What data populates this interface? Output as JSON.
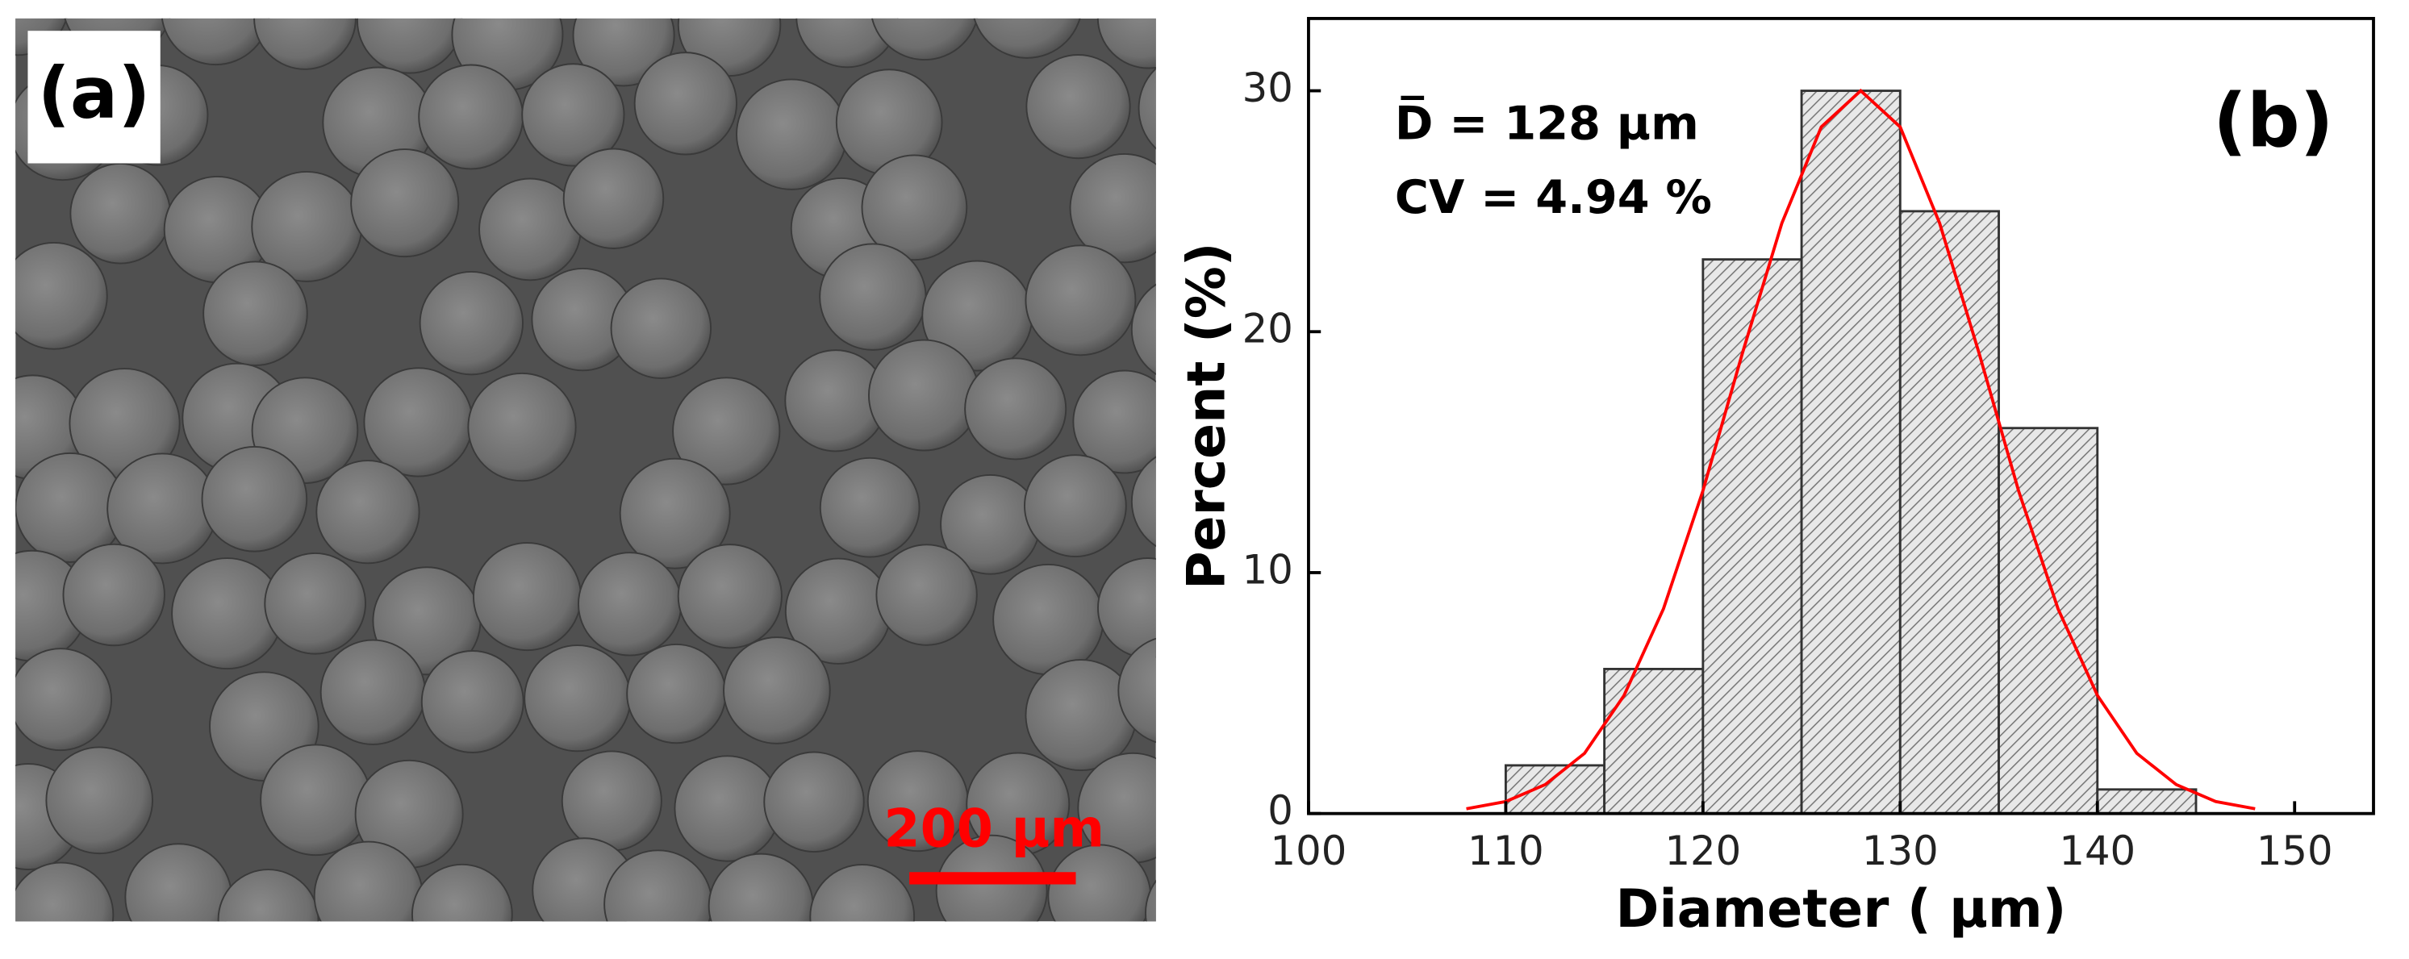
{
  "panel_a": {
    "label": "(a)",
    "scale_bar": "200 μm"
  },
  "chart_data": {
    "type": "histogram",
    "panel_label": "(b)",
    "annotations": [
      "D̅ = 128 μm",
      "CV = 4.94 %"
    ],
    "xlabel": "Diameter ( μm)",
    "ylabel": "Percent (%)",
    "bins": [
      105,
      110,
      115,
      120,
      125,
      130,
      135,
      140,
      145
    ],
    "values": [
      0,
      2,
      6,
      23,
      30,
      25,
      16,
      1
    ],
    "color": "#888888",
    "fit": {
      "color": "#ff0000",
      "x": [
        108,
        110,
        112,
        114,
        116,
        118,
        120,
        122,
        124,
        126,
        128,
        130,
        132,
        134,
        136,
        138,
        140,
        142,
        144,
        146,
        148
      ],
      "values": [
        0.2,
        0.5,
        1.2,
        2.5,
        4.9,
        8.5,
        13.4,
        19.1,
        24.5,
        28.5,
        30,
        28.5,
        24.5,
        19.1,
        13.4,
        8.5,
        4.9,
        2.5,
        1.2,
        0.5,
        0.2
      ]
    },
    "xlim": [
      100,
      154
    ],
    "ylim": [
      0,
      33
    ],
    "xticks": [
      100,
      110,
      120,
      130,
      140,
      150
    ],
    "yticks": [
      0,
      10,
      20,
      30
    ]
  }
}
